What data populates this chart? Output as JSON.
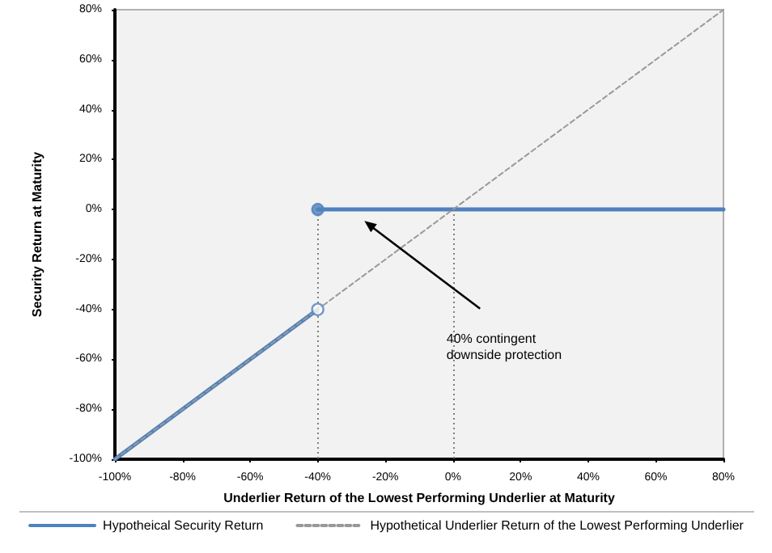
{
  "chart_data": {
    "type": "line",
    "xlabel": "Underlier Return of the Lowest Performing Underlier at Maturity",
    "ylabel": "Security Return at Maturity",
    "xlim": [
      -100,
      80
    ],
    "ylim": [
      -100,
      80
    ],
    "xticks": [
      {
        "value": -100,
        "label": "-100%"
      },
      {
        "value": -80,
        "label": "-80%"
      },
      {
        "value": -60,
        "label": "-60%"
      },
      {
        "value": -40,
        "label": "-40%"
      },
      {
        "value": -20,
        "label": "-20%"
      },
      {
        "value": 0,
        "label": "0%"
      },
      {
        "value": 20,
        "label": "20%"
      },
      {
        "value": 40,
        "label": "40%"
      },
      {
        "value": 60,
        "label": "60%"
      },
      {
        "value": 80,
        "label": "80%"
      }
    ],
    "yticks": [
      {
        "value": -100,
        "label": "-100%"
      },
      {
        "value": -80,
        "label": "-80%"
      },
      {
        "value": -60,
        "label": "-60%"
      },
      {
        "value": -40,
        "label": "-40%"
      },
      {
        "value": -20,
        "label": "-20%"
      },
      {
        "value": 0,
        "label": "0%"
      },
      {
        "value": 20,
        "label": "20%"
      },
      {
        "value": 40,
        "label": "40%"
      },
      {
        "value": 60,
        "label": "60%"
      },
      {
        "value": 80,
        "label": "80%"
      }
    ],
    "series": [
      {
        "name": "Hypotheical Security Return",
        "color": "#4f81bd",
        "line_style": "solid",
        "x": [
          -100,
          -40
        ],
        "values": [
          -100,
          -40
        ]
      },
      {
        "color": "#4f81bd",
        "line_style": "solid",
        "x": [
          -40,
          80
        ],
        "values": [
          0,
          0
        ]
      },
      {
        "name": "Hypothetical Underlier Return of the Lowest Performing Underlier",
        "color": "#999999",
        "line_style": "dashed",
        "x": [
          -100,
          80
        ],
        "values": [
          -100,
          80
        ]
      },
      {
        "type": "scatter",
        "color": "#ffffff",
        "marker": "circle",
        "x": [
          -40
        ],
        "values": [
          -40
        ]
      },
      {
        "type": "scatter",
        "color": "#4f81bd",
        "marker": "circle",
        "x": [
          -40
        ],
        "values": [
          0
        ]
      }
    ],
    "ref_lines": [
      {
        "axis": "x",
        "value": -40,
        "color": "#808080",
        "line_style": "dotted"
      },
      {
        "axis": "x",
        "value": 0,
        "color": "#808080",
        "line_style": "dotted"
      }
    ],
    "annotations": [
      "40% contingent downside protection"
    ],
    "grid": false,
    "legend": "bottom"
  }
}
